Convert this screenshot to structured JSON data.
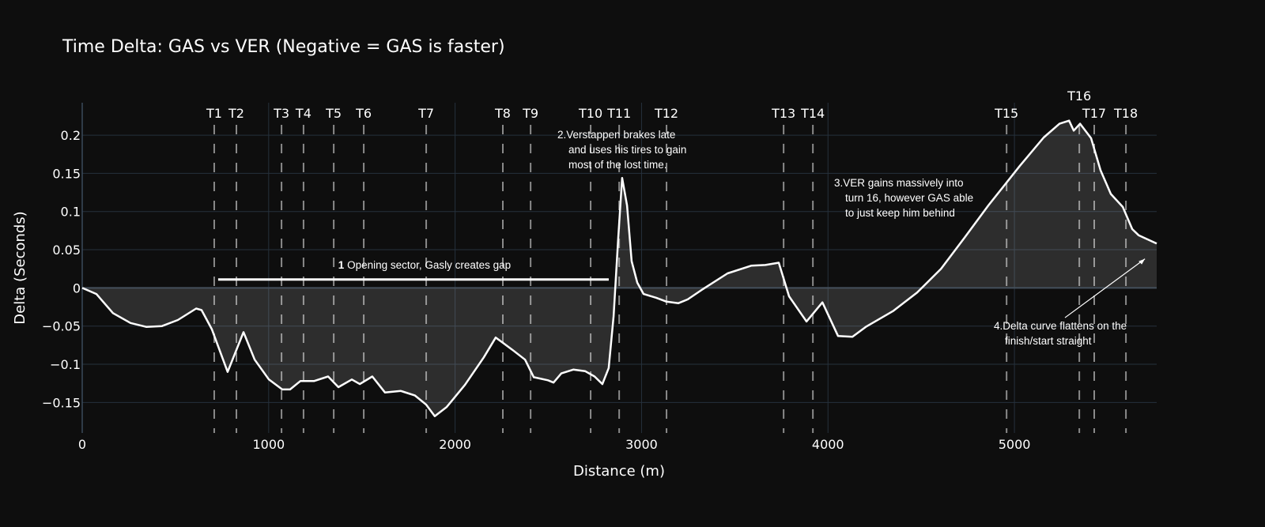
{
  "chart_data": {
    "type": "area",
    "title": "Time Delta: GAS vs VER (Negative = GAS is faster)",
    "xlabel": "Distance (m)",
    "ylabel": "Delta (Seconds)",
    "xlim": [
      0,
      5763
    ],
    "ylim": [
      -0.19,
      0.2425
    ],
    "grid": true,
    "x_ticks": [
      0,
      1000,
      2000,
      3000,
      4000,
      5000
    ],
    "y_ticks": [
      -0.15,
      -0.1,
      -0.05,
      0,
      0.05,
      0.1,
      0.15,
      0.2
    ],
    "y_tick_labels": [
      "−0.15",
      "−0.1",
      "−0.05",
      "0",
      "0.05",
      "0.1",
      "0.15",
      "0.2"
    ],
    "colors": {
      "background": "#0e0e0e",
      "line": "#ffffff",
      "fill": "rgba(255,255,255,0.13)",
      "grid": "#26313c",
      "turn_marker": "#8a8a8a"
    },
    "series": [
      {
        "x": [
          0,
          76,
          165,
          259,
          343,
          428,
          513,
          611,
          640,
          695,
          780,
          865,
          925,
          1001,
          1073,
          1115,
          1170,
          1243,
          1319,
          1374,
          1446,
          1489,
          1556,
          1624,
          1709,
          1785,
          1845,
          1891,
          1955,
          2053,
          2154,
          2218,
          2307,
          2375,
          2422,
          2498,
          2528,
          2570,
          2634,
          2697,
          2748,
          2790,
          2824,
          2850,
          2875,
          2896,
          2922,
          2947,
          2977,
          3011,
          3079,
          3134,
          3198,
          3248,
          3333,
          3461,
          3588,
          3664,
          3736,
          3791,
          3885,
          3970,
          4054,
          4131,
          4203,
          4351,
          4478,
          4606,
          4733,
          4860,
          5030,
          5157,
          5242,
          5293,
          5318,
          5352,
          5411,
          5462,
          5517,
          5581,
          5632,
          5666,
          5763
        ],
        "y": [
          0,
          -0.008,
          -0.033,
          -0.046,
          -0.051,
          -0.05,
          -0.042,
          -0.027,
          -0.029,
          -0.054,
          -0.11,
          -0.058,
          -0.094,
          -0.12,
          -0.133,
          -0.133,
          -0.122,
          -0.122,
          -0.116,
          -0.13,
          -0.12,
          -0.126,
          -0.116,
          -0.137,
          -0.135,
          -0.141,
          -0.153,
          -0.168,
          -0.156,
          -0.127,
          -0.091,
          -0.065,
          -0.081,
          -0.094,
          -0.117,
          -0.121,
          -0.124,
          -0.112,
          -0.107,
          -0.109,
          -0.116,
          -0.126,
          -0.105,
          -0.037,
          0.066,
          0.144,
          0.108,
          0.035,
          0.007,
          -0.008,
          -0.013,
          -0.018,
          -0.02,
          -0.015,
          -0.001,
          0.019,
          0.029,
          0.03,
          0.033,
          -0.011,
          -0.044,
          -0.019,
          -0.063,
          -0.064,
          -0.051,
          -0.03,
          -0.006,
          0.025,
          0.066,
          0.108,
          0.16,
          0.197,
          0.215,
          0.219,
          0.206,
          0.215,
          0.196,
          0.154,
          0.123,
          0.106,
          0.077,
          0.069,
          0.058
        ]
      }
    ],
    "turns": [
      {
        "label": "T1",
        "x": 708
      },
      {
        "label": "T2",
        "x": 827
      },
      {
        "label": "T3",
        "x": 1069
      },
      {
        "label": "T4",
        "x": 1187
      },
      {
        "label": "T5",
        "x": 1349
      },
      {
        "label": "T6",
        "x": 1510
      },
      {
        "label": "T7",
        "x": 1845
      },
      {
        "label": "T8",
        "x": 2256
      },
      {
        "label": "T9",
        "x": 2405
      },
      {
        "label": "T10",
        "x": 2727
      },
      {
        "label": "T11",
        "x": 2880
      },
      {
        "label": "T12",
        "x": 3134
      },
      {
        "label": "T13",
        "x": 3762
      },
      {
        "label": "T14",
        "x": 3919
      },
      {
        "label": "T15",
        "x": 4958
      },
      {
        "label": "T16",
        "x": 5348
      },
      {
        "label": "T17",
        "x": 5428
      },
      {
        "label": "T18",
        "x": 5598
      }
    ],
    "annotations": {
      "a1": {
        "number": "1",
        "text": "Opening sector, Gasly creates gap",
        "line_x": [
          729,
          2824
        ],
        "line_y": 0.011
      },
      "a2": {
        "lines": [
          "2.Verstappen brakes late",
          "and uses his tires to gain",
          "most of the lost time."
        ]
      },
      "a3": {
        "lines": [
          "3.VER gains massively into",
          "turn 16, however GAS able",
          "to just keep him behind"
        ]
      },
      "a4": {
        "lines": [
          "4.Delta curve flattens on the",
          "finish/start straight"
        ],
        "arrow_from": [
          5271,
          -0.039
        ],
        "arrow_to": [
          5700,
          0.038
        ]
      }
    }
  }
}
